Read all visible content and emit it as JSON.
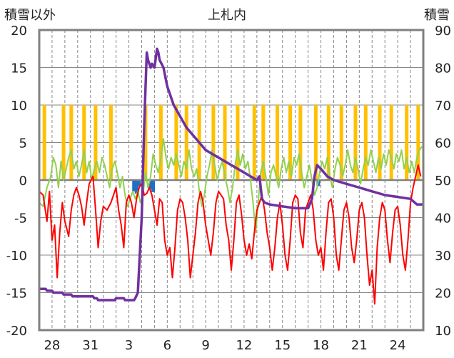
{
  "chart_data": {
    "type": "line",
    "title": "上札内",
    "left_axis_label": "積雪以外",
    "right_axis_label": "積雪",
    "ylim_left": [
      -20,
      20
    ],
    "ylim_right": [
      10,
      90
    ],
    "y_ticks_left": [
      "20",
      "15",
      "10",
      "5",
      "0",
      "-5",
      "-10",
      "-15",
      "-20"
    ],
    "y_ticks_right": [
      "90",
      "80",
      "70",
      "60",
      "50",
      "40",
      "30",
      "20",
      "10"
    ],
    "x_ticks": [
      {
        "day": 1,
        "label": "28"
      },
      {
        "day": 4,
        "label": "31"
      },
      {
        "day": 7,
        "label": "3"
      },
      {
        "day": 10,
        "label": "6"
      },
      {
        "day": 13,
        "label": "9"
      },
      {
        "day": 16,
        "label": "12"
      },
      {
        "day": 19,
        "label": "15"
      },
      {
        "day": 22,
        "label": "18"
      },
      {
        "day": 25,
        "label": "21"
      },
      {
        "day": 28,
        "label": "24"
      }
    ],
    "xlim": [
      0,
      30
    ],
    "colors": {
      "sunshine": "#FFC000",
      "precip": "#1F6FC5",
      "temperature": "#FF0000",
      "wind": "#92D050",
      "snow_depth": "#7030A0",
      "frame": "#808080",
      "grid": "#888888",
      "zero_line": "#808080"
    },
    "sunshine_bars": [
      [
        0.4,
        10
      ],
      [
        1.9,
        10
      ],
      [
        2.5,
        10
      ],
      [
        3.5,
        10
      ],
      [
        4.4,
        10
      ],
      [
        5.6,
        10
      ],
      [
        8.3,
        10
      ],
      [
        9.5,
        10
      ],
      [
        10.7,
        10
      ],
      [
        11.5,
        10
      ],
      [
        12.5,
        10
      ],
      [
        13.6,
        10
      ],
      [
        14.5,
        10
      ],
      [
        15.5,
        10
      ],
      [
        16.8,
        10
      ],
      [
        17.5,
        10
      ],
      [
        18.6,
        10
      ],
      [
        19.6,
        10
      ],
      [
        20.4,
        10
      ],
      [
        21.6,
        10
      ],
      [
        22.6,
        10
      ],
      [
        23.6,
        10
      ],
      [
        24.7,
        10
      ],
      [
        25.5,
        10
      ],
      [
        26.6,
        10
      ],
      [
        27.5,
        10
      ],
      [
        28.7,
        10
      ],
      [
        29.6,
        10
      ]
    ],
    "precip_bars": [
      [
        7.4,
        -1.5
      ],
      [
        7.6,
        -1.8
      ],
      [
        7.8,
        -0.8
      ],
      [
        8.7,
        -1.2
      ],
      [
        8.9,
        -1.6
      ],
      [
        21.8,
        -0.8
      ]
    ],
    "temperature": [
      [
        0,
        -1.5
      ],
      [
        0.3,
        -2
      ],
      [
        0.6,
        -5.5
      ],
      [
        0.8,
        -1.5
      ],
      [
        1.0,
        -8
      ],
      [
        1.2,
        -6
      ],
      [
        1.4,
        -13
      ],
      [
        1.6,
        -7
      ],
      [
        1.8,
        -3
      ],
      [
        2.0,
        -5.5
      ],
      [
        2.3,
        -7.5
      ],
      [
        2.5,
        -4
      ],
      [
        2.7,
        -2
      ],
      [
        2.9,
        -1
      ],
      [
        3.1,
        -2
      ],
      [
        3.3,
        -3.5
      ],
      [
        3.5,
        -6
      ],
      [
        3.7,
        -3
      ],
      [
        3.9,
        -0.5
      ],
      [
        4.2,
        0.5
      ],
      [
        4.4,
        -4
      ],
      [
        4.6,
        -9
      ],
      [
        4.8,
        -5.5
      ],
      [
        5.0,
        -3.5
      ],
      [
        5.3,
        -4
      ],
      [
        5.6,
        -3
      ],
      [
        5.8,
        -2
      ],
      [
        6.0,
        -1
      ],
      [
        6.2,
        -4
      ],
      [
        6.4,
        -6
      ],
      [
        6.6,
        -9
      ],
      [
        6.8,
        -3
      ],
      [
        7.0,
        -2
      ],
      [
        7.2,
        -3
      ],
      [
        7.4,
        -5
      ],
      [
        7.6,
        -2.5
      ],
      [
        7.8,
        -1
      ],
      [
        8.0,
        -0.5
      ],
      [
        8.2,
        -2
      ],
      [
        8.4,
        -1.8
      ],
      [
        8.6,
        -1
      ],
      [
        8.8,
        -2
      ],
      [
        9.0,
        -4
      ],
      [
        9.2,
        -6
      ],
      [
        9.4,
        -2.5
      ],
      [
        9.6,
        -3
      ],
      [
        9.8,
        -8
      ],
      [
        10.0,
        -10
      ],
      [
        10.2,
        -9
      ],
      [
        10.4,
        -13
      ],
      [
        10.6,
        -9
      ],
      [
        10.8,
        -4
      ],
      [
        11.0,
        -2.5
      ],
      [
        11.2,
        -3
      ],
      [
        11.4,
        -5
      ],
      [
        11.6,
        -8
      ],
      [
        11.8,
        -13
      ],
      [
        12.0,
        -10
      ],
      [
        12.2,
        -7
      ],
      [
        12.4,
        -3
      ],
      [
        12.6,
        -1.5
      ],
      [
        12.8,
        -3
      ],
      [
        13.0,
        -6
      ],
      [
        13.2,
        -8
      ],
      [
        13.4,
        -10
      ],
      [
        13.6,
        -7
      ],
      [
        13.8,
        -3
      ],
      [
        14.0,
        -1.5
      ],
      [
        14.2,
        -2
      ],
      [
        14.4,
        -2.5
      ],
      [
        14.6,
        -6
      ],
      [
        14.8,
        -8
      ],
      [
        15.0,
        -12
      ],
      [
        15.2,
        -8
      ],
      [
        15.4,
        -3
      ],
      [
        15.6,
        -2
      ],
      [
        15.8,
        -4.5
      ],
      [
        16.0,
        -8
      ],
      [
        16.2,
        -10
      ],
      [
        16.4,
        -8.5
      ],
      [
        16.6,
        -10.5
      ],
      [
        16.8,
        -7
      ],
      [
        17.0,
        -4
      ],
      [
        17.2,
        -3
      ],
      [
        17.4,
        -2
      ],
      [
        17.6,
        -4
      ],
      [
        17.8,
        -7
      ],
      [
        18.0,
        -9
      ],
      [
        18.2,
        -12
      ],
      [
        18.4,
        -9
      ],
      [
        18.6,
        -5
      ],
      [
        18.8,
        -3
      ],
      [
        19.0,
        -6
      ],
      [
        19.2,
        -10
      ],
      [
        19.4,
        -12
      ],
      [
        19.6,
        -8
      ],
      [
        19.8,
        -3
      ],
      [
        20.0,
        -2
      ],
      [
        20.2,
        -2.5
      ],
      [
        20.4,
        -7
      ],
      [
        20.6,
        -9
      ],
      [
        20.8,
        -4
      ],
      [
        21.0,
        -3
      ],
      [
        21.2,
        -2
      ],
      [
        21.4,
        -4
      ],
      [
        21.6,
        -8
      ],
      [
        21.8,
        -10
      ],
      [
        22.0,
        -9
      ],
      [
        22.2,
        -12
      ],
      [
        22.4,
        -7
      ],
      [
        22.6,
        -3
      ],
      [
        22.8,
        -2.5
      ],
      [
        23.0,
        -5
      ],
      [
        23.2,
        -10
      ],
      [
        23.4,
        -12
      ],
      [
        23.6,
        -8
      ],
      [
        23.8,
        -4
      ],
      [
        24.0,
        -3
      ],
      [
        24.2,
        -5
      ],
      [
        24.4,
        -9
      ],
      [
        24.6,
        -11
      ],
      [
        24.8,
        -8
      ],
      [
        25.0,
        -4
      ],
      [
        25.2,
        -3
      ],
      [
        25.4,
        -5
      ],
      [
        25.6,
        -10
      ],
      [
        25.8,
        -14
      ],
      [
        26.0,
        -12
      ],
      [
        26.2,
        -16.5
      ],
      [
        26.4,
        -9
      ],
      [
        26.6,
        -5
      ],
      [
        26.8,
        -3
      ],
      [
        27.0,
        -4
      ],
      [
        27.2,
        -8
      ],
      [
        27.4,
        -11
      ],
      [
        27.6,
        -7
      ],
      [
        27.8,
        -4
      ],
      [
        28.0,
        -3.5
      ],
      [
        28.2,
        -6
      ],
      [
        28.4,
        -10
      ],
      [
        28.6,
        -12
      ],
      [
        28.8,
        -8
      ],
      [
        29.0,
        -3
      ],
      [
        29.2,
        -1
      ],
      [
        29.4,
        0.5
      ],
      [
        29.6,
        2
      ],
      [
        29.8,
        0.5
      ]
    ],
    "wind": [
      [
        0,
        -3
      ],
      [
        0.3,
        -3.5
      ],
      [
        0.6,
        -1
      ],
      [
        0.9,
        0.5
      ],
      [
        1.1,
        3
      ],
      [
        1.3,
        2
      ],
      [
        1.5,
        -1
      ],
      [
        1.7,
        2.5
      ],
      [
        1.9,
        0
      ],
      [
        2.1,
        1.5
      ],
      [
        2.3,
        3
      ],
      [
        2.5,
        4
      ],
      [
        2.7,
        1.5
      ],
      [
        2.9,
        2.5
      ],
      [
        3.1,
        0.5
      ],
      [
        3.3,
        2
      ],
      [
        3.5,
        4
      ],
      [
        3.7,
        1
      ],
      [
        3.9,
        2.5
      ],
      [
        4.1,
        0
      ],
      [
        4.3,
        1.5
      ],
      [
        4.5,
        2.5
      ],
      [
        4.7,
        1
      ],
      [
        4.9,
        3
      ],
      [
        5.1,
        2
      ],
      [
        5.3,
        0.5
      ],
      [
        5.5,
        -1
      ],
      [
        5.7,
        1.5
      ],
      [
        5.9,
        2.5
      ],
      [
        6.1,
        1
      ],
      [
        6.3,
        -1
      ],
      [
        6.5,
        0.5
      ],
      [
        6.7,
        -2
      ],
      [
        6.9,
        -3.5
      ],
      [
        7.1,
        -2.5
      ],
      [
        7.3,
        -1.5
      ],
      [
        7.5,
        -2.5
      ],
      [
        7.7,
        -1.5
      ],
      [
        7.9,
        -3
      ],
      [
        8.1,
        -2
      ],
      [
        8.3,
        1
      ],
      [
        8.5,
        -1
      ],
      [
        8.7,
        0.5
      ],
      [
        8.9,
        3.5
      ],
      [
        9.1,
        2
      ],
      [
        9.3,
        1
      ],
      [
        9.5,
        3
      ],
      [
        9.7,
        5.5
      ],
      [
        9.9,
        3
      ],
      [
        10.1,
        1.5
      ],
      [
        10.3,
        3
      ],
      [
        10.5,
        2
      ],
      [
        10.7,
        3.5
      ],
      [
        10.9,
        2
      ],
      [
        11.1,
        0.5
      ],
      [
        11.3,
        2.5
      ],
      [
        11.5,
        1.5
      ],
      [
        11.7,
        4
      ],
      [
        11.9,
        1.5
      ],
      [
        12.1,
        0.5
      ],
      [
        12.3,
        1.5
      ],
      [
        12.5,
        -1.5
      ],
      [
        12.7,
        -3.5
      ],
      [
        12.9,
        -2
      ],
      [
        13.1,
        0.5
      ],
      [
        13.3,
        2
      ],
      [
        13.5,
        4
      ],
      [
        13.7,
        2
      ],
      [
        13.9,
        0
      ],
      [
        14.1,
        1.5
      ],
      [
        14.3,
        2.5
      ],
      [
        14.5,
        0.5
      ],
      [
        14.7,
        -1
      ],
      [
        14.9,
        -3
      ],
      [
        15.1,
        -1
      ],
      [
        15.3,
        2
      ],
      [
        15.5,
        4
      ],
      [
        15.7,
        2
      ],
      [
        15.9,
        3.5
      ],
      [
        16.1,
        1.5
      ],
      [
        16.3,
        2.5
      ],
      [
        16.5,
        0
      ],
      [
        16.7,
        -3
      ],
      [
        16.9,
        -7
      ],
      [
        17.1,
        -3
      ],
      [
        17.3,
        1
      ],
      [
        17.5,
        2.5
      ],
      [
        17.7,
        0.5
      ],
      [
        17.9,
        -2
      ],
      [
        18.1,
        1
      ],
      [
        18.3,
        2
      ],
      [
        18.5,
        0.5
      ],
      [
        18.7,
        -1
      ],
      [
        18.9,
        1.5
      ],
      [
        19.1,
        3
      ],
      [
        19.3,
        1
      ],
      [
        19.5,
        2.5
      ],
      [
        19.7,
        0.5
      ],
      [
        19.9,
        3
      ],
      [
        20.1,
        2
      ],
      [
        20.3,
        3.5
      ],
      [
        20.5,
        1
      ],
      [
        20.7,
        -1
      ],
      [
        20.9,
        0.5
      ],
      [
        21.1,
        2
      ],
      [
        21.3,
        0
      ],
      [
        21.5,
        -2
      ],
      [
        21.7,
        -1
      ],
      [
        21.9,
        1
      ],
      [
        22.1,
        2.5
      ],
      [
        22.3,
        1.5
      ],
      [
        22.5,
        3
      ],
      [
        22.7,
        0.5
      ],
      [
        22.9,
        -1
      ],
      [
        23.1,
        1.5
      ],
      [
        23.3,
        3
      ],
      [
        23.5,
        2
      ],
      [
        23.7,
        0.5
      ],
      [
        23.9,
        2
      ],
      [
        24.1,
        4
      ],
      [
        24.3,
        2
      ],
      [
        24.5,
        1
      ],
      [
        24.7,
        3
      ],
      [
        24.9,
        1.5
      ],
      [
        25.1,
        -0.5
      ],
      [
        25.3,
        1.5
      ],
      [
        25.5,
        3
      ],
      [
        25.7,
        2
      ],
      [
        25.9,
        4
      ],
      [
        26.1,
        2.5
      ],
      [
        26.3,
        1
      ],
      [
        26.5,
        3
      ],
      [
        26.7,
        1.5
      ],
      [
        26.9,
        3.5
      ],
      [
        27.1,
        2
      ],
      [
        27.3,
        4
      ],
      [
        27.5,
        3
      ],
      [
        27.7,
        1.5
      ],
      [
        27.9,
        3.5
      ],
      [
        28.1,
        2.5
      ],
      [
        28.3,
        4
      ],
      [
        28.5,
        1.5
      ],
      [
        28.7,
        3
      ],
      [
        28.9,
        1
      ],
      [
        29.1,
        2.5
      ],
      [
        29.3,
        1
      ],
      [
        29.5,
        3
      ],
      [
        29.7,
        4
      ],
      [
        29.9,
        4.5
      ]
    ],
    "snow_depth": [
      [
        0,
        21
      ],
      [
        0.5,
        21
      ],
      [
        0.6,
        20.5
      ],
      [
        1.0,
        20.5
      ],
      [
        1.1,
        20
      ],
      [
        1.8,
        20
      ],
      [
        1.9,
        19.5
      ],
      [
        2.5,
        19.5
      ],
      [
        2.6,
        19
      ],
      [
        4.2,
        19
      ],
      [
        4.3,
        18.5
      ],
      [
        4.5,
        18.5
      ],
      [
        4.6,
        18
      ],
      [
        5.9,
        18
      ],
      [
        6.0,
        18.5
      ],
      [
        6.6,
        18.5
      ],
      [
        6.7,
        18
      ],
      [
        7.4,
        18
      ],
      [
        7.5,
        18.5
      ],
      [
        7.7,
        20
      ],
      [
        8.0,
        40
      ],
      [
        8.2,
        65
      ],
      [
        8.4,
        84
      ],
      [
        8.5,
        82
      ],
      [
        8.6,
        81
      ],
      [
        8.7,
        80
      ],
      [
        8.8,
        81
      ],
      [
        9.0,
        80
      ],
      [
        9.2,
        85
      ],
      [
        9.3,
        84
      ],
      [
        9.4,
        82
      ],
      [
        9.7,
        80
      ],
      [
        10.0,
        75
      ],
      [
        10.5,
        70
      ],
      [
        11.0,
        67
      ],
      [
        11.5,
        64
      ],
      [
        12.0,
        62
      ],
      [
        12.5,
        60
      ],
      [
        13.0,
        58
      ],
      [
        13.5,
        57
      ],
      [
        14.0,
        56
      ],
      [
        14.5,
        55
      ],
      [
        15.0,
        54
      ],
      [
        15.5,
        53
      ],
      [
        16.0,
        52
      ],
      [
        16.5,
        51
      ],
      [
        17.0,
        50
      ],
      [
        17.2,
        51
      ],
      [
        17.4,
        45
      ],
      [
        17.6,
        44
      ],
      [
        18.0,
        43.5
      ],
      [
        19.0,
        43
      ],
      [
        20.0,
        42.5
      ],
      [
        21.0,
        42.5
      ],
      [
        21.3,
        45
      ],
      [
        21.5,
        51
      ],
      [
        21.7,
        54
      ],
      [
        22.0,
        53
      ],
      [
        22.5,
        51
      ],
      [
        23.0,
        50
      ],
      [
        24.0,
        49
      ],
      [
        25.0,
        48
      ],
      [
        26.0,
        47
      ],
      [
        27.0,
        46
      ],
      [
        28.0,
        45.5
      ],
      [
        29.0,
        45
      ],
      [
        29.5,
        43.5
      ],
      [
        30.0,
        43.5
      ]
    ]
  }
}
